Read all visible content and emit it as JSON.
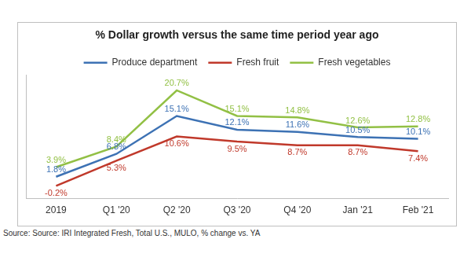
{
  "chart_data": {
    "type": "line",
    "title": "% Dollar growth versus the same time period year ago",
    "source": "Source: Source: IRI Integrated Fresh, Total U.S., MULO, % change vs. YA",
    "categories": [
      "2019",
      "Q1 '20",
      "Q2 '20",
      "Q3 '20",
      "Q4 '20",
      "Jan '21",
      "Feb '21"
    ],
    "series": [
      {
        "name": "Produce department",
        "color": "#3d72b4",
        "values": [
          1.8,
          6.8,
          15.1,
          12.1,
          11.6,
          10.5,
          10.1
        ],
        "value_labels": [
          "1.8%",
          "6.8%",
          "15.1%",
          "12.1%",
          "11.6%",
          "10.5%",
          "10.1%"
        ]
      },
      {
        "name": "Fresh fruit",
        "color": "#c0392b",
        "values": [
          -0.2,
          5.3,
          10.6,
          9.5,
          8.7,
          8.7,
          7.4
        ],
        "value_labels": [
          "-0.2%",
          "5.3%",
          "10.6%",
          "9.5%",
          "8.7%",
          "8.7%",
          "7.4%"
        ]
      },
      {
        "name": "Fresh vegetables",
        "color": "#92c045",
        "values": [
          3.9,
          8.4,
          20.7,
          15.1,
          14.8,
          12.6,
          12.8
        ],
        "value_labels": [
          "3.9%",
          "8.4%",
          "20.7%",
          "15.1%",
          "14.8%",
          "12.6%",
          "12.8%"
        ]
      }
    ],
    "ylim": [
      -3,
      24
    ],
    "grid": false,
    "legend": "top",
    "data_labels": true,
    "tick_labels": "x"
  }
}
